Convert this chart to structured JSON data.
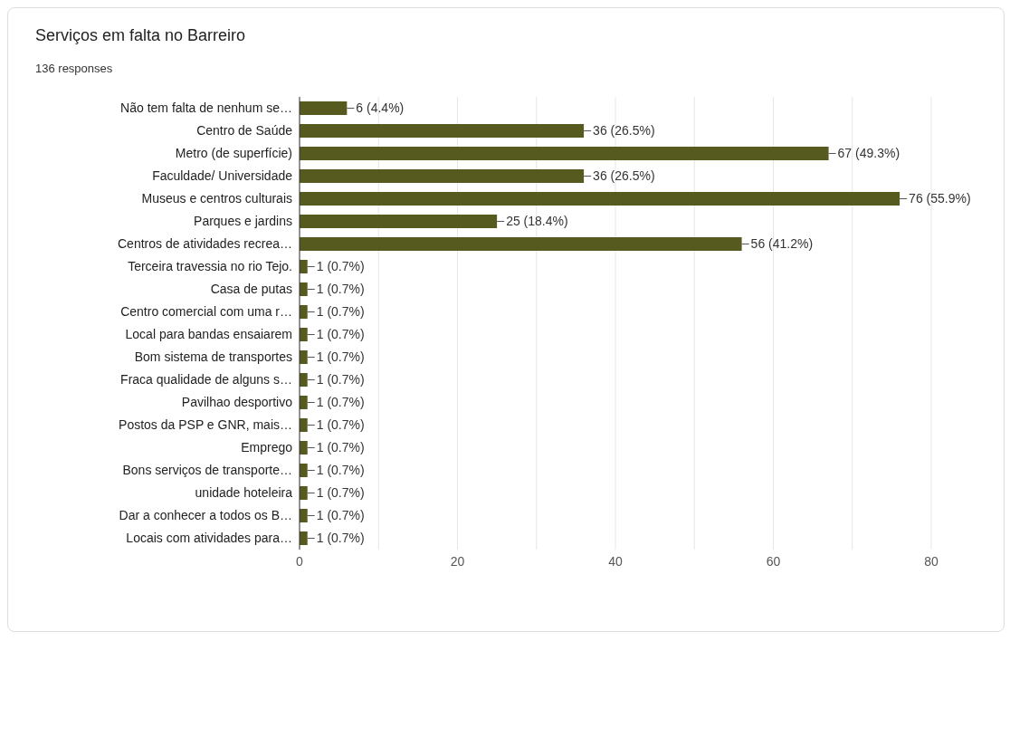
{
  "chart_data": {
    "type": "bar",
    "orientation": "horizontal",
    "title": "Serviços em falta no Barreiro",
    "subtitle": "136 responses",
    "categories": [
      "Não tem falta de nenhum se…",
      "Centro de Saúde",
      "Metro (de superfície)",
      "Faculdade/ Universidade",
      "Museus e centros culturais",
      "Parques e jardins",
      "Centros de atividades recrea…",
      "Terceira travessia no rio Tejo.",
      "Casa de putas",
      "Centro comercial com uma r…",
      "Local para bandas ensaiarem",
      "Bom sistema de transportes",
      "Fraca qualidade de alguns s…",
      "Pavilhao desportivo",
      "Postos da PSP e GNR, mais…",
      "Emprego",
      "Bons serviços de transporte…",
      "unidade hoteleira",
      "Dar a conhecer a todos os B…",
      "Locais com atividades para…"
    ],
    "values": [
      6,
      36,
      67,
      36,
      76,
      25,
      56,
      1,
      1,
      1,
      1,
      1,
      1,
      1,
      1,
      1,
      1,
      1,
      1,
      1
    ],
    "value_labels": [
      "6 (4.4%)",
      "36 (26.5%)",
      "67 (49.3%)",
      "36 (26.5%)",
      "76 (55.9%)",
      "25 (18.4%)",
      "56 (41.2%)",
      "1 (0.7%)",
      "1 (0.7%)",
      "1 (0.7%)",
      "1 (0.7%)",
      "1 (0.7%)",
      "1 (0.7%)",
      "1 (0.7%)",
      "1 (0.7%)",
      "1 (0.7%)",
      "1 (0.7%)",
      "1 (0.7%)",
      "1 (0.7%)",
      "1 (0.7%)"
    ],
    "color": "#565a1e",
    "xlim": [
      0,
      80
    ],
    "xticks": [
      0,
      {
        "value": 10,
        "label": null
      },
      20,
      {
        "value": 30,
        "label": null
      },
      40,
      {
        "value": 50,
        "label": null
      },
      60,
      {
        "value": 70,
        "label": null
      },
      80
    ],
    "grid": "x"
  }
}
